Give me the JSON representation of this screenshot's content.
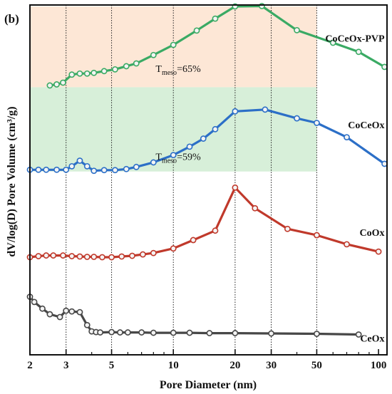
{
  "chart_data": {
    "type": "line",
    "panel_label": "(b)",
    "xlabel": "Pore Diameter (nm)",
    "ylabel": "dV/log(D) Pore Volume (cm³/g)",
    "x_scale": "log",
    "xlim": [
      2,
      110
    ],
    "ylim": [
      0,
      100
    ],
    "x_ticks": [
      2,
      3,
      5,
      10,
      20,
      30,
      50,
      100
    ],
    "x_tick_labels": [
      "2",
      "3",
      "5",
      "10",
      "20",
      "30",
      "50",
      "100"
    ],
    "vertical_gridlines_at": [
      3,
      5,
      10,
      20,
      30,
      50
    ],
    "y_ticks_labeled": false,
    "shaded_regions": [
      {
        "x_range": [
          2,
          50
        ],
        "y_range": [
          76.5,
          99.6
        ],
        "color": "#fde7d6"
      },
      {
        "x_range": [
          2,
          50
        ],
        "y_range": [
          52.4,
          76.5
        ],
        "color": "#d7efd9"
      }
    ],
    "annotations": [
      {
        "base": "T",
        "sub": "meso",
        "text": "=65%",
        "x": 8.2,
        "y": 80.9
      },
      {
        "base": "T",
        "sub": "meso",
        "text": "=59%",
        "x": 8.2,
        "y": 55.7
      }
    ],
    "series": [
      {
        "name": "CoCeOx-PVP",
        "color": "#3aaa64",
        "label_pos": [
          107,
          89.5
        ],
        "x": [
          2.5,
          2.7,
          2.9,
          3.2,
          3.5,
          3.8,
          4.1,
          4.6,
          5.2,
          5.9,
          6.6,
          8.0,
          10.0,
          13.0,
          16.0,
          20.0,
          27.0,
          40.0,
          60.0,
          80.0,
          107.0
        ],
        "y": [
          77.0,
          77.3,
          77.8,
          80.1,
          80.4,
          80.4,
          80.6,
          81.1,
          81.6,
          82.5,
          83.3,
          85.7,
          88.6,
          92.7,
          96.1,
          99.6,
          99.7,
          92.8,
          89.2,
          86.6,
          82.3
        ]
      },
      {
        "name": "CoCeOx",
        "color": "#2c6fc7",
        "label_pos": [
          107,
          64.8
        ],
        "x": [
          2.0,
          2.2,
          2.4,
          2.7,
          3.0,
          3.2,
          3.5,
          3.8,
          4.1,
          4.6,
          5.2,
          5.9,
          6.6,
          8.0,
          10.0,
          12.0,
          14.0,
          16.0,
          20.0,
          28.0,
          40.0,
          50.0,
          70.0,
          107.0
        ],
        "y": [
          52.9,
          52.9,
          52.9,
          52.9,
          52.9,
          53.9,
          55.5,
          53.9,
          52.6,
          52.8,
          52.8,
          53.1,
          53.7,
          55.0,
          57.1,
          59.5,
          61.8,
          64.5,
          69.6,
          70.1,
          67.6,
          66.3,
          62.2,
          54.6
        ]
      },
      {
        "name": "CoOx",
        "color": "#c0392b",
        "label_pos": [
          107,
          34.0
        ],
        "x": [
          2.0,
          2.2,
          2.4,
          2.6,
          2.9,
          3.2,
          3.5,
          3.8,
          4.1,
          4.5,
          5.0,
          5.6,
          6.3,
          7.1,
          8.0,
          10.0,
          12.5,
          16.0,
          20.0,
          25.0,
          36.0,
          50.0,
          70.0,
          100.0
        ],
        "y": [
          27.9,
          28.2,
          28.4,
          28.4,
          28.4,
          28.2,
          28.1,
          28.0,
          28.0,
          27.9,
          27.9,
          28.1,
          28.3,
          28.7,
          29.1,
          30.4,
          32.8,
          35.5,
          47.8,
          41.9,
          36.0,
          34.2,
          31.6,
          29.5
        ]
      },
      {
        "name": "CeOx",
        "color": "#474747",
        "label_pos": [
          107,
          3.8
        ],
        "x": [
          2.0,
          2.1,
          2.3,
          2.5,
          2.8,
          3.0,
          3.2,
          3.5,
          3.8,
          4.0,
          4.2,
          4.4,
          5.0,
          5.5,
          6.0,
          7.0,
          8.0,
          10.0,
          12.0,
          15.0,
          20.0,
          30.0,
          50.0,
          80.0
        ],
        "y": [
          16.6,
          15.1,
          13.2,
          11.6,
          10.8,
          12.6,
          12.4,
          12.2,
          8.5,
          6.7,
          6.5,
          6.4,
          6.5,
          6.4,
          6.4,
          6.4,
          6.3,
          6.3,
          6.3,
          6.2,
          6.2,
          6.1,
          6.0,
          5.8
        ]
      }
    ]
  }
}
